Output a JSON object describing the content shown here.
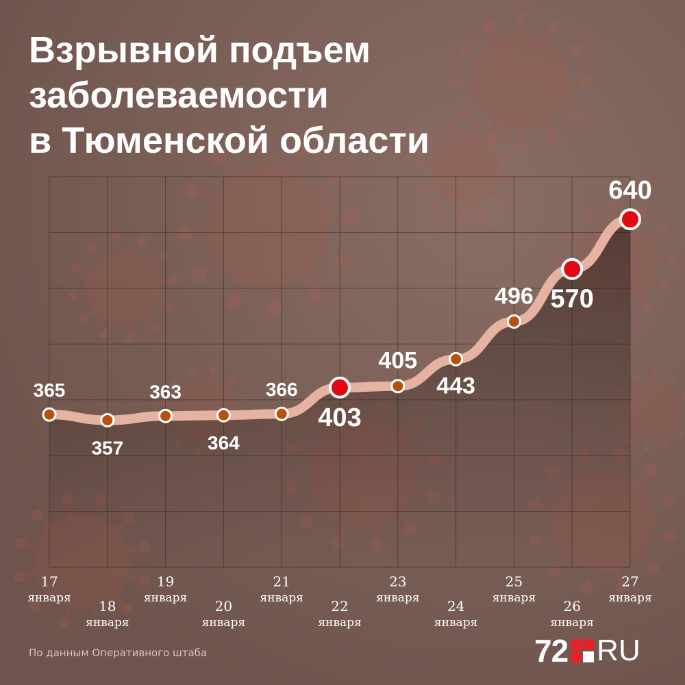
{
  "header": {
    "title_lines": [
      "Взрывной подъем",
      "заболеваемости",
      "в Тюменской области"
    ]
  },
  "footer": {
    "source": "По данным Оперативного штаба",
    "logo_number": "72",
    "logo_suffix": "RU"
  },
  "colors": {
    "background": "#7a5f57",
    "line": "#e6b3a2",
    "point_fill": "#b5520f",
    "highlight_fill": "#e30613",
    "label": "#ffffff",
    "grid": "#3a2a25"
  },
  "chart_data": {
    "type": "line",
    "title": "Взрывной подъем заболеваемости в Тюменской области",
    "xlabel": "",
    "ylabel": "",
    "x": [
      "17 января",
      "18 января",
      "19 января",
      "20 января",
      "21 января",
      "22 января",
      "23 января",
      "24 января",
      "25 января",
      "26 января",
      "27 января"
    ],
    "values": [
      365,
      357,
      363,
      364,
      366,
      403,
      405,
      443,
      496,
      570,
      640
    ],
    "highlighted": [
      false,
      false,
      false,
      false,
      false,
      true,
      false,
      false,
      false,
      true,
      true
    ],
    "ylim": [
      150,
      700
    ],
    "grid": true,
    "legend": "none"
  }
}
